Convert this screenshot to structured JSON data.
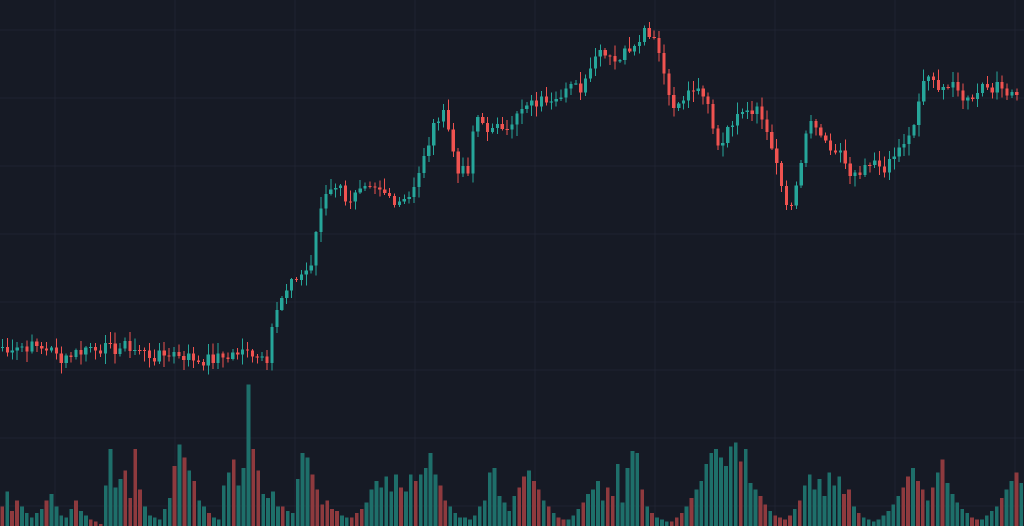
{
  "colors": {
    "background": "#161a25",
    "grid": "#1f2331",
    "up": "#26a69a",
    "down": "#ef5350",
    "up_volume": "#1e6f6a",
    "down_volume": "#8e3a3e"
  },
  "chart_data": {
    "type": "candlestick",
    "grid": true,
    "title": "",
    "xlabel": "",
    "ylabel": "",
    "price_range": [
      0,
      100
    ],
    "volume_range": [
      0,
      100
    ],
    "points": [
      [
        0,
        38
      ],
      [
        30,
        38.5
      ],
      [
        50,
        38
      ],
      [
        62,
        35.5
      ],
      [
        95,
        38.5
      ],
      [
        115,
        37.5
      ],
      [
        130,
        38.5
      ],
      [
        145,
        37
      ],
      [
        158,
        35.5
      ],
      [
        175,
        37
      ],
      [
        200,
        35
      ],
      [
        215,
        35
      ],
      [
        235,
        36.5
      ],
      [
        255,
        37
      ],
      [
        270,
        35.5
      ],
      [
        275,
        46
      ],
      [
        288,
        51.5
      ],
      [
        300,
        56
      ],
      [
        313,
        58
      ],
      [
        318,
        65
      ],
      [
        322,
        72
      ],
      [
        330,
        78
      ],
      [
        340,
        79
      ],
      [
        350,
        75
      ],
      [
        365,
        77
      ],
      [
        380,
        77
      ],
      [
        400,
        75
      ],
      [
        410,
        76
      ],
      [
        420,
        80
      ],
      [
        432,
        90
      ],
      [
        445,
        99
      ],
      [
        452,
        91
      ],
      [
        460,
        83
      ],
      [
        470,
        81
      ],
      [
        478,
        96
      ],
      [
        495,
        92
      ],
      [
        515,
        95
      ],
      [
        528,
        98
      ],
      [
        545,
        100
      ],
      [
        570,
        103
      ],
      [
        585,
        103
      ],
      [
        595,
        111
      ],
      [
        605,
        113
      ],
      [
        620,
        110
      ],
      [
        635,
        114
      ],
      [
        648,
        118
      ],
      [
        660,
        115
      ],
      [
        670,
        102
      ],
      [
        680,
        98
      ],
      [
        695,
        103
      ],
      [
        710,
        99
      ],
      [
        720,
        89
      ],
      [
        730,
        92
      ],
      [
        740,
        98
      ],
      [
        760,
        98
      ],
      [
        770,
        92
      ],
      [
        780,
        82
      ],
      [
        790,
        73
      ],
      [
        800,
        78
      ],
      [
        810,
        94
      ],
      [
        822,
        92
      ],
      [
        832,
        86
      ],
      [
        842,
        88
      ],
      [
        852,
        80
      ],
      [
        862,
        81
      ],
      [
        875,
        84
      ],
      [
        890,
        83
      ],
      [
        905,
        89
      ],
      [
        915,
        91
      ],
      [
        925,
        105
      ],
      [
        940,
        104
      ],
      [
        955,
        103
      ],
      [
        970,
        100
      ],
      [
        985,
        104
      ],
      [
        1000,
        103
      ],
      [
        1024,
        102
      ]
    ],
    "volume_levels": [
      9,
      16,
      7,
      12,
      9,
      6,
      4,
      6,
      8,
      12,
      15,
      9,
      5,
      4,
      8,
      12,
      7,
      5,
      3,
      2,
      1,
      19,
      36,
      18,
      22,
      26,
      13,
      36,
      17,
      9,
      5,
      4,
      3,
      8,
      13,
      28,
      38,
      32,
      26,
      21,
      12,
      9,
      6,
      4,
      3,
      19,
      25,
      31,
      19,
      27,
      66,
      36,
      26,
      15,
      13,
      16,
      9,
      9,
      7,
      6,
      22,
      34,
      32,
      24,
      17,
      10,
      12,
      8,
      7,
      5,
      4,
      4,
      6,
      8,
      11,
      17,
      21,
      18,
      23,
      16,
      24,
      18,
      16,
      24,
      21,
      24,
      27,
      34,
      24,
      19,
      12,
      9,
      6,
      4,
      4,
      3,
      5,
      9,
      12,
      25,
      27,
      14,
      11,
      7,
      14,
      18,
      23,
      26,
      21,
      17,
      12,
      9,
      6,
      4,
      3,
      3,
      5,
      8,
      11,
      15,
      17,
      21,
      12,
      18,
      14,
      29,
      11,
      27,
      35,
      34,
      17,
      9,
      6,
      4,
      3,
      2,
      2,
      4,
      6,
      9,
      13,
      17,
      21,
      29,
      34,
      36,
      32,
      28,
      37,
      39,
      30,
      36,
      20,
      17,
      14,
      10,
      7,
      5,
      4,
      3,
      5,
      8,
      12,
      19,
      24,
      17,
      22,
      14,
      25,
      19,
      23,
      15,
      17,
      9,
      6,
      4,
      3,
      2,
      3,
      5,
      7,
      10,
      14,
      18,
      23,
      27,
      21,
      17,
      12,
      18,
      25,
      31,
      20,
      15,
      11,
      8,
      6,
      4,
      3,
      3,
      5,
      7,
      9,
      13,
      17,
      21,
      25,
      20
    ]
  }
}
